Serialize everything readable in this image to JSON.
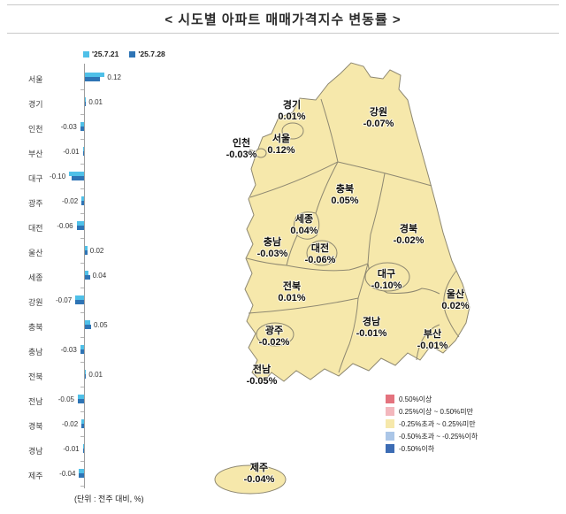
{
  "title": "< 시도별 아파트 매매가격지수 변동률 >",
  "unit_note": "(단위 : 전주 대비, %)",
  "legend": {
    "series1": "'25.7.21",
    "series2": "'25.7.28",
    "series1_color": "#4FC0E8",
    "series2_color": "#2E74B5"
  },
  "chart_data": {
    "type": "bar",
    "orientation": "horizontal",
    "title": "시도별 아파트 매매가격지수 변동률",
    "categories": [
      "서울",
      "경기",
      "인천",
      "부산",
      "대구",
      "광주",
      "대전",
      "울산",
      "세종",
      "강원",
      "충북",
      "충남",
      "전북",
      "전남",
      "경북",
      "경남",
      "제주"
    ],
    "series": [
      {
        "name": "'25.7.21",
        "values": [
          0.16,
          0.01,
          -0.03,
          -0.01,
          -0.12,
          -0.02,
          -0.06,
          0.02,
          0.03,
          -0.07,
          0.04,
          -0.03,
          0.01,
          -0.05,
          -0.02,
          -0.01,
          -0.04
        ]
      },
      {
        "name": "'25.7.28",
        "values": [
          0.12,
          0.01,
          -0.03,
          -0.01,
          -0.1,
          -0.02,
          -0.06,
          0.02,
          0.04,
          -0.07,
          0.05,
          -0.03,
          0.01,
          -0.05,
          -0.02,
          -0.01,
          -0.04
        ]
      }
    ],
    "labels": [
      "0.12",
      "0.01",
      "-0.03",
      "-0.01",
      "-0.10",
      "-0.02",
      "-0.06",
      "0.02",
      "0.04",
      "-0.07",
      "0.05",
      "-0.03",
      "0.01",
      "-0.05",
      "-0.02",
      "-0.01",
      "-0.04"
    ]
  },
  "map": {
    "fill_color": "#F6E8AB",
    "border_color": "#8E8871",
    "regions": [
      {
        "name": "경기",
        "value": "0.01%"
      },
      {
        "name": "강원",
        "value": "-0.07%"
      },
      {
        "name": "인천",
        "value": "-0.03%"
      },
      {
        "name": "서울",
        "value": "0.12%"
      },
      {
        "name": "충북",
        "value": "0.05%"
      },
      {
        "name": "세종",
        "value": "0.04%"
      },
      {
        "name": "충남",
        "value": "-0.03%"
      },
      {
        "name": "대전",
        "value": "-0.06%"
      },
      {
        "name": "경북",
        "value": "-0.02%"
      },
      {
        "name": "전북",
        "value": "0.01%"
      },
      {
        "name": "대구",
        "value": "-0.10%"
      },
      {
        "name": "울산",
        "value": "0.02%"
      },
      {
        "name": "광주",
        "value": "-0.02%"
      },
      {
        "name": "경남",
        "value": "-0.01%"
      },
      {
        "name": "부산",
        "value": "-0.01%"
      },
      {
        "name": "전남",
        "value": "-0.05%"
      },
      {
        "name": "제주",
        "value": "-0.04%"
      }
    ],
    "color_legend": [
      {
        "label": "0.50%이상",
        "color": "#E4737E"
      },
      {
        "label": "0.25%이상 ~ 0.50%미만",
        "color": "#F3B7BD"
      },
      {
        "label": "-0.25%초과 ~ 0.25%미만",
        "color": "#F6E8AB"
      },
      {
        "label": "-0.50%초과 ~ -0.25%이하",
        "color": "#ABC6E7"
      },
      {
        "label": "-0.50%이하",
        "color": "#3C6CB4"
      }
    ]
  }
}
